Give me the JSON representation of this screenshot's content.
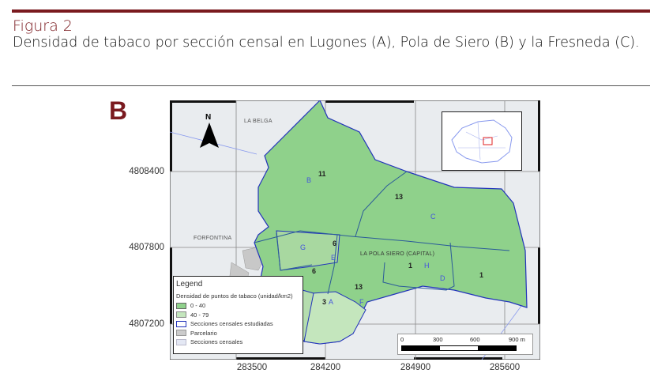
{
  "figure": {
    "label": "Figura 2",
    "title": "Densidad de tabaco por sección censal en Lugones (A), Pola de Siero (B) y la Fresneda (C)."
  },
  "panel": {
    "letter": "B"
  },
  "colors": {
    "accent": "#7a1a1f",
    "density_0_40": "#8fd18b",
    "density_40_79": "#c4e6bd",
    "studied_border": "#2233bb",
    "parcel": "#cccccc",
    "census_sections": "#e4e8f4",
    "background": "#e9ecef"
  },
  "map": {
    "north_label": "N",
    "place_labels": [
      "LA BELGA",
      "FORFONTINA",
      "LA POLA SIERO (CAPITAL)"
    ],
    "y_ticks": [
      "4808400",
      "4807800",
      "4807200"
    ],
    "x_ticks": [
      "283500",
      "284200",
      "284900",
      "285600"
    ],
    "sections": [
      {
        "letter": "B",
        "count": "11"
      },
      {
        "letter": "C",
        "count": "13"
      },
      {
        "letter": "G",
        "count": "6"
      },
      {
        "letter": "E",
        "count": "6"
      },
      {
        "letter": "H",
        "count": "1"
      },
      {
        "letter": "D",
        "count": "1"
      },
      {
        "letter": "A",
        "count": "3"
      },
      {
        "letter": "F",
        "count": "13"
      }
    ],
    "scale_bar": {
      "labels": [
        "0",
        "300",
        "600",
        "900 m"
      ]
    }
  },
  "legend": {
    "title": "Legend",
    "subtitle": "Densidad de puntos de tabaco (unidad/km2)",
    "items": [
      {
        "label": "0 - 40",
        "color": "#8fd18b"
      },
      {
        "label": "40 - 79",
        "color": "#c4e6bd"
      },
      {
        "label": "Secciones censales estudiadas",
        "color": "#2233bb"
      },
      {
        "label": "Parcelario",
        "color": "#cccccc"
      },
      {
        "label": "Secciones censales",
        "color": "#e4e8f4"
      }
    ]
  }
}
